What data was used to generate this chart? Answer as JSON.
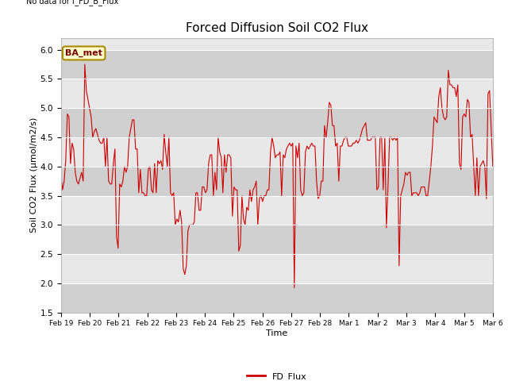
{
  "title": "Forced Diffusion Soil CO2 Flux",
  "top_left_note": "No data for f_FD_B_Flux",
  "xlabel": "Time",
  "ylabel": "Soil CO2 Flux (μmol/m2/s)",
  "ylim": [
    1.5,
    6.2
  ],
  "yticks": [
    1.5,
    2.0,
    2.5,
    3.0,
    3.5,
    4.0,
    4.5,
    5.0,
    5.5,
    6.0
  ],
  "xtick_labels": [
    "Feb 19",
    "Feb 20",
    "Feb 21",
    "Feb 22",
    "Feb 23",
    "Feb 24",
    "Feb 25",
    "Feb 26",
    "Feb 27",
    "Feb 28",
    "Mar 1",
    "Mar 2",
    "Mar 3",
    "Mar 4",
    "Mar 5",
    "Mar 6"
  ],
  "line_color": "#cc0000",
  "line_label": "FD_Flux",
  "legend_label_box": "BA_met",
  "background_color": "#ffffff",
  "plot_bg_color": "#e8e8e8",
  "band_dark_color": "#d0d0d0",
  "band_light_color": "#e8e8e8",
  "y_values": [
    3.85,
    3.6,
    3.75,
    4.1,
    4.9,
    4.85,
    4.05,
    4.4,
    4.3,
    3.9,
    3.75,
    3.7,
    3.8,
    3.9,
    3.75,
    5.75,
    5.3,
    5.15,
    5.0,
    4.85,
    4.5,
    4.6,
    4.65,
    4.55,
    4.45,
    4.4,
    4.4,
    4.5,
    4.0,
    4.5,
    3.75,
    3.7,
    3.7,
    4.05,
    4.3,
    2.8,
    2.6,
    3.7,
    3.65,
    3.75,
    4.0,
    3.9,
    4.0,
    4.5,
    4.65,
    4.8,
    4.8,
    4.3,
    4.3,
    3.55,
    3.95,
    3.55,
    3.55,
    3.5,
    3.5,
    3.95,
    4.0,
    3.6,
    3.55,
    4.05,
    3.55,
    4.1,
    4.05,
    4.1,
    3.95,
    4.55,
    4.25,
    4.0,
    4.5,
    3.55,
    3.5,
    3.55,
    3.0,
    3.1,
    3.05,
    3.25,
    3.05,
    2.25,
    2.15,
    2.3,
    2.9,
    3.0,
    3.0,
    3.0,
    3.05,
    3.55,
    3.55,
    3.25,
    3.25,
    3.65,
    3.65,
    3.55,
    3.6,
    4.05,
    4.2,
    4.2,
    3.5,
    3.9,
    3.6,
    4.5,
    4.25,
    4.15,
    3.55,
    4.2,
    3.9,
    4.2,
    4.2,
    4.15,
    3.15,
    3.65,
    3.6,
    3.6,
    2.55,
    2.65,
    3.5,
    3.1,
    3.0,
    3.3,
    3.25,
    3.6,
    3.4,
    3.6,
    3.65,
    3.75,
    3.0,
    3.45,
    3.5,
    3.4,
    3.5,
    3.5,
    3.6,
    3.6,
    4.25,
    4.5,
    4.35,
    4.15,
    4.2,
    4.2,
    4.25,
    3.5,
    4.2,
    4.15,
    4.3,
    4.35,
    4.4,
    4.35,
    4.4,
    1.92,
    4.35,
    4.15,
    4.4,
    3.6,
    3.5,
    3.55,
    4.25,
    4.35,
    4.3,
    4.35,
    4.4,
    4.35,
    4.35,
    3.75,
    3.45,
    3.5,
    3.75,
    3.75,
    4.7,
    4.5,
    4.75,
    5.1,
    5.05,
    4.7,
    4.7,
    4.35,
    4.4,
    3.75,
    4.35,
    4.35,
    4.45,
    4.5,
    4.5,
    4.35,
    4.35,
    4.35,
    4.4,
    4.4,
    4.45,
    4.4,
    4.45,
    4.55,
    4.65,
    4.7,
    4.75,
    4.45,
    4.45,
    4.45,
    4.5,
    4.5,
    4.5,
    3.6,
    3.65,
    4.5,
    4.5,
    3.6,
    4.5,
    2.95,
    3.65,
    4.5,
    4.5,
    4.45,
    4.5,
    4.45,
    4.5,
    2.3,
    3.5,
    3.6,
    3.7,
    3.9,
    3.85,
    3.9,
    3.9,
    3.5,
    3.55,
    3.55,
    3.55,
    3.5,
    3.55,
    3.65,
    3.65,
    3.65,
    3.5,
    3.5,
    3.75,
    4.0,
    4.35,
    4.85,
    4.8,
    4.75,
    5.2,
    5.35,
    5.0,
    4.85,
    4.8,
    4.85,
    5.65,
    5.4,
    5.4,
    5.35,
    5.35,
    5.2,
    5.4,
    4.05,
    3.95,
    4.85,
    4.9,
    4.85,
    5.15,
    5.1,
    4.5,
    4.55,
    4.0,
    3.5,
    4.15,
    3.5,
    4.0,
    4.05,
    4.1,
    4.0,
    3.45,
    5.25,
    5.3,
    4.65,
    4.0
  ]
}
